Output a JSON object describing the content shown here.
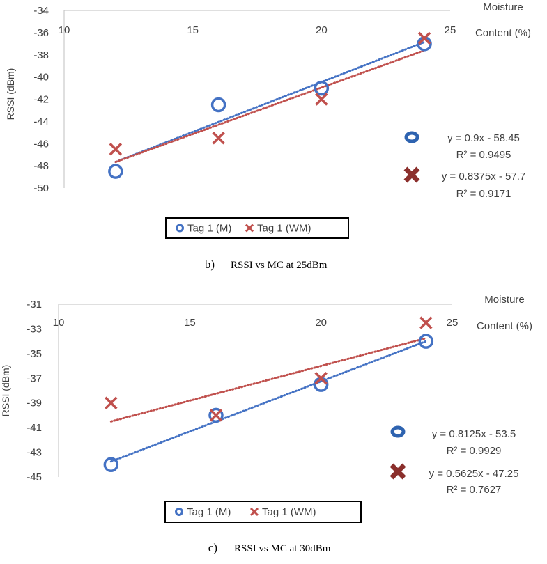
{
  "colors": {
    "series_m": "#4472C4",
    "series_wm": "#C0504D",
    "trend_m": "#4472C4",
    "trend_wm": "#C0504D",
    "legend_marker_m": "#2E63B0",
    "legend_marker_wm": "#8B2F2C",
    "axis": "#BFBFBF",
    "text": "#404040"
  },
  "chart_data": [
    {
      "type": "scatter",
      "caption_letter": "b)",
      "caption_text": "RSSI vs MC at 25dBm",
      "xlabel": "Moisture Content (%)",
      "xlabel_lines": [
        "Moisture",
        "Content (%)"
      ],
      "ylabel": "RSSI (dBm)",
      "xlim": [
        10,
        25
      ],
      "ylim": [
        -50,
        -34
      ],
      "xticks": [
        10,
        15,
        20,
        25
      ],
      "yticks": [
        -34,
        -36,
        -38,
        -40,
        -42,
        -44,
        -46,
        -48,
        -50
      ],
      "x_axis_position": "top",
      "grid": false,
      "legend_position": "bottom",
      "series": [
        {
          "name": "Tag 1 (M)",
          "marker": "circle",
          "x": [
            12,
            16,
            20,
            24
          ],
          "y": [
            -48.5,
            -42.5,
            -41,
            -37
          ]
        },
        {
          "name": "Tag 1 (WM)",
          "marker": "x",
          "x": [
            12,
            16,
            20,
            24
          ],
          "y": [
            -46.5,
            -45.5,
            -42,
            -36.5
          ]
        }
      ],
      "trendlines": [
        {
          "series": "Tag 1 (M)",
          "slope": 0.9,
          "intercept": -58.45,
          "x_range": [
            12,
            24
          ],
          "equation": "y = 0.9x - 58.45",
          "r2": "R² = 0.9495"
        },
        {
          "series": "Tag 1 (WM)",
          "slope": 0.8375,
          "intercept": -57.7,
          "x_range": [
            12,
            24
          ],
          "equation": "y = 0.8375x - 57.7",
          "r2": "R² = 0.9171"
        }
      ]
    },
    {
      "type": "scatter",
      "caption_letter": "c)",
      "caption_text": "RSSI vs MC at 30dBm",
      "xlabel": "Moisture Content (%)",
      "xlabel_lines": [
        "Moisture",
        "Content (%)"
      ],
      "ylabel": "RSSI (dBm)",
      "xlim": [
        10,
        25
      ],
      "ylim": [
        -45,
        -31
      ],
      "xticks": [
        10,
        15,
        20,
        25
      ],
      "yticks": [
        -31,
        -33,
        -35,
        -37,
        -39,
        -41,
        -43,
        -45
      ],
      "x_axis_position": "top",
      "grid": false,
      "legend_position": "bottom",
      "series": [
        {
          "name": "Tag 1 (M)",
          "marker": "circle",
          "x": [
            12,
            16,
            20,
            24
          ],
          "y": [
            -44,
            -40,
            -37.5,
            -34
          ]
        },
        {
          "name": "Tag 1 (WM)",
          "marker": "x",
          "x": [
            12,
            16,
            20,
            24
          ],
          "y": [
            -39,
            -40,
            -37,
            -32.5
          ]
        }
      ],
      "trendlines": [
        {
          "series": "Tag 1 (M)",
          "slope": 0.8125,
          "intercept": -53.5,
          "x_range": [
            12,
            24
          ],
          "equation": "y = 0.8125x - 53.5",
          "r2": "R² = 0.9929"
        },
        {
          "series": "Tag 1 (WM)",
          "slope": 0.5625,
          "intercept": -47.25,
          "x_range": [
            12,
            24
          ],
          "equation": "y = 0.5625x - 47.25",
          "r2": "R² = 0.7627"
        }
      ]
    }
  ]
}
